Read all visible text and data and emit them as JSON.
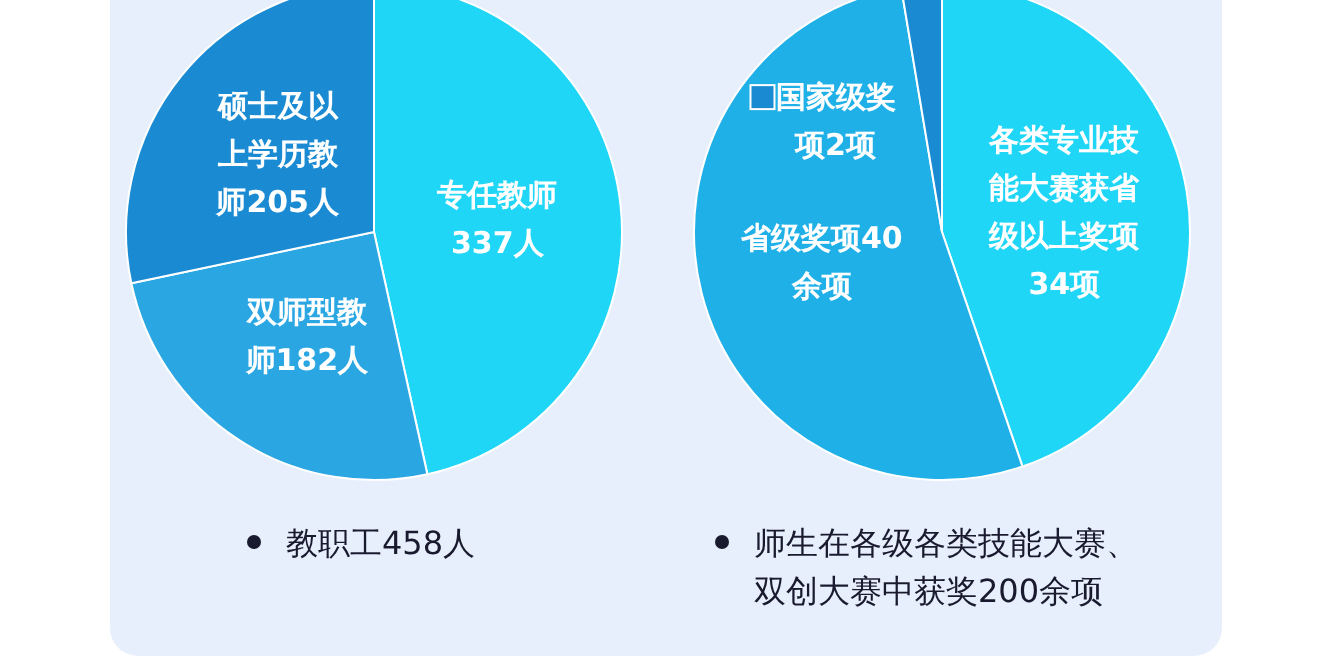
{
  "chart_data": [
    {
      "type": "pie",
      "categories": [
        "专任教师",
        "双师型教师",
        "硕士及以上学历教师"
      ],
      "values": [
        337,
        182,
        205
      ],
      "value_labels": [
        "337人",
        "182人",
        "205人"
      ],
      "colors": [
        "#1fd6f7",
        "#2aa6e3",
        "#1a8bd3"
      ],
      "annotations": [
        "教职工458人"
      ]
    },
    {
      "type": "pie",
      "categories": [
        "各类专业技能大赛获省级以上奖项",
        "省级奖项",
        "国家级奖项"
      ],
      "values": [
        34,
        40,
        2
      ],
      "value_labels": [
        "34项",
        "40余项",
        "2项"
      ],
      "colors": [
        "#1fd6f7",
        "#1fb0e8",
        "#1a8bd3"
      ],
      "annotations": [
        "师生在各级各类技能大赛、双创大赛中获奖200余项"
      ]
    }
  ]
}
